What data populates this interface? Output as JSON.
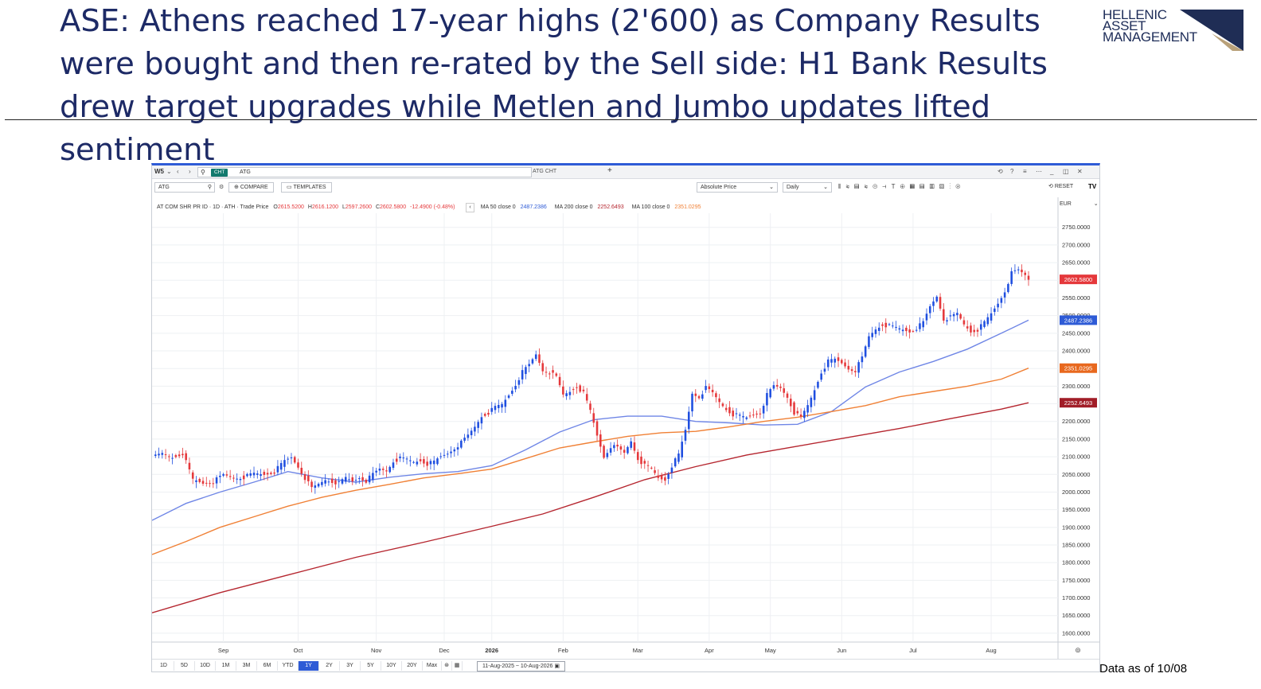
{
  "slide": {
    "title": "ASE: Athens reached 17-year highs (2'600) as Company Results were bought and then re-rated by the Sell side: H1 Bank Results drew target upgrades while Metlen and Jumbo updates lifted sentiment",
    "logo_lines": [
      "HELLENIC",
      "ASSET",
      "MANAGEMENT"
    ],
    "footnote": "Data as of 10/08",
    "colors": {
      "title": "#1d2a66",
      "logo_triangle_dark": "#1f2d55",
      "logo_triangle_gold": "#b9a17a"
    }
  },
  "app": {
    "topbar": {
      "workspace": "W5",
      "tag": "CHT",
      "search_value": "ATG",
      "tab_label": "ATG CHT",
      "add_tab": "+"
    },
    "toolbar": {
      "symbol_value": "ATG",
      "compare_label": "COMPARE",
      "templates_label": "TEMPLATES",
      "price_mode": "Absolute Price",
      "interval": "Daily",
      "reset_label": "RESET",
      "currency": "EUR"
    },
    "infobar": {
      "instrument": "AT COM SHR PR ID · 1D · ATH · Trade Price",
      "o_label": "O",
      "o_value": "2615.5200",
      "h_label": "H",
      "h_value": "2616.1200",
      "l_label": "L",
      "l_value": "2597.2600",
      "c_label": "C",
      "c_value": "2602.5800",
      "change": "-12.4900 (-0.48%)",
      "ma50_label": "MA 50 close 0",
      "ma50_value": "2487.2386",
      "ma200_label": "MA 200 close 0",
      "ma200_value": "2252.6493",
      "ma100_label": "MA 100 close 0",
      "ma100_value": "2351.0295"
    },
    "range_buttons": [
      "1D",
      "5D",
      "10D",
      "1M",
      "3M",
      "6M",
      "YTD",
      "1Y",
      "2Y",
      "3Y",
      "5Y",
      "10Y",
      "20Y",
      "Max"
    ],
    "active_range": "1Y",
    "date_range": "11-Aug-2025 ~ 10-Aug-2026"
  },
  "chart_data": {
    "type": "candlestick",
    "title": "",
    "currency": "EUR",
    "ylim": [
      1575,
      2790
    ],
    "y_ticks": [
      1600,
      1650,
      1700,
      1750,
      1800,
      1850,
      1900,
      1950,
      2000,
      2050,
      2100,
      2150,
      2200,
      2250,
      2300,
      2350,
      2400,
      2450,
      2500,
      2550,
      2600,
      2650,
      2700,
      2750
    ],
    "y_tick_format": "0000",
    "x_labels": [
      "Sep",
      "Oct",
      "Nov",
      "Dec",
      "2026",
      "Feb",
      "Mar",
      "Apr",
      "May",
      "Jun",
      "Jul",
      "Aug"
    ],
    "x_label_days": [
      21,
      43,
      66,
      86,
      100,
      121,
      143,
      164,
      182,
      203,
      224,
      247
    ],
    "days_total": 252,
    "last_price": {
      "value": 2602.58,
      "label": "2602.5800",
      "color": "#e5383b"
    },
    "colors": {
      "up": "#1f4fe0",
      "down": "#e5383b"
    },
    "close_anchors": [
      [
        0,
        2097
      ],
      [
        3,
        2108
      ],
      [
        6,
        2098
      ],
      [
        9,
        2110
      ],
      [
        12,
        2035
      ],
      [
        15,
        2025
      ],
      [
        18,
        2030
      ],
      [
        21,
        2048
      ],
      [
        24,
        2040
      ],
      [
        27,
        2042
      ],
      [
        30,
        2052
      ],
      [
        33,
        2050
      ],
      [
        36,
        2058
      ],
      [
        39,
        2088
      ],
      [
        41,
        2098
      ],
      [
        43,
        2072
      ],
      [
        45,
        2040
      ],
      [
        47,
        2010
      ],
      [
        49,
        2022
      ],
      [
        51,
        2035
      ],
      [
        53,
        2030
      ],
      [
        55,
        2025
      ],
      [
        57,
        2040
      ],
      [
        59,
        2030
      ],
      [
        61,
        2042
      ],
      [
        63,
        2032
      ],
      [
        65,
        2050
      ],
      [
        67,
        2065
      ],
      [
        69,
        2060
      ],
      [
        71,
        2088
      ],
      [
        73,
        2095
      ],
      [
        75,
        2092
      ],
      [
        77,
        2085
      ],
      [
        79,
        2090
      ],
      [
        81,
        2080
      ],
      [
        83,
        2085
      ],
      [
        85,
        2100
      ],
      [
        87,
        2110
      ],
      [
        89,
        2125
      ],
      [
        91,
        2140
      ],
      [
        93,
        2160
      ],
      [
        95,
        2185
      ],
      [
        97,
        2215
      ],
      [
        99,
        2225
      ],
      [
        101,
        2240
      ],
      [
        103,
        2248
      ],
      [
        105,
        2275
      ],
      [
        107,
        2305
      ],
      [
        109,
        2340
      ],
      [
        111,
        2360
      ],
      [
        113,
        2390
      ],
      [
        115,
        2345
      ],
      [
        117,
        2340
      ],
      [
        119,
        2325
      ],
      [
        121,
        2275
      ],
      [
        123,
        2285
      ],
      [
        125,
        2300
      ],
      [
        127,
        2280
      ],
      [
        129,
        2230
      ],
      [
        131,
        2160
      ],
      [
        133,
        2100
      ],
      [
        135,
        2130
      ],
      [
        137,
        2125
      ],
      [
        139,
        2110
      ],
      [
        141,
        2145
      ],
      [
        143,
        2095
      ],
      [
        145,
        2075
      ],
      [
        147,
        2065
      ],
      [
        149,
        2040
      ],
      [
        151,
        2035
      ],
      [
        153,
        2075
      ],
      [
        155,
        2105
      ],
      [
        157,
        2175
      ],
      [
        159,
        2280
      ],
      [
        161,
        2270
      ],
      [
        163,
        2295
      ],
      [
        165,
        2280
      ],
      [
        167,
        2255
      ],
      [
        169,
        2235
      ],
      [
        171,
        2220
      ],
      [
        173,
        2215
      ],
      [
        175,
        2210
      ],
      [
        177,
        2220
      ],
      [
        179,
        2225
      ],
      [
        181,
        2275
      ],
      [
        183,
        2300
      ],
      [
        185,
        2295
      ],
      [
        187,
        2270
      ],
      [
        189,
        2225
      ],
      [
        191,
        2210
      ],
      [
        193,
        2245
      ],
      [
        195,
        2290
      ],
      [
        197,
        2340
      ],
      [
        199,
        2370
      ],
      [
        201,
        2375
      ],
      [
        203,
        2365
      ],
      [
        205,
        2350
      ],
      [
        207,
        2345
      ],
      [
        209,
        2380
      ],
      [
        211,
        2440
      ],
      [
        213,
        2462
      ],
      [
        215,
        2475
      ],
      [
        217,
        2470
      ],
      [
        219,
        2465
      ],
      [
        221,
        2460
      ],
      [
        223,
        2455
      ],
      [
        225,
        2465
      ],
      [
        227,
        2480
      ],
      [
        229,
        2525
      ],
      [
        231,
        2555
      ],
      [
        233,
        2490
      ],
      [
        235,
        2495
      ],
      [
        237,
        2505
      ],
      [
        239,
        2475
      ],
      [
        241,
        2455
      ],
      [
        243,
        2460
      ],
      [
        245,
        2480
      ],
      [
        247,
        2505
      ],
      [
        249,
        2535
      ],
      [
        251,
        2570
      ],
      [
        253,
        2620
      ],
      [
        255,
        2628
      ],
      [
        257,
        2615
      ],
      [
        258,
        2603
      ]
    ],
    "series": [
      {
        "name": "MA 50 close 0",
        "color": "#6f86e6",
        "last_label": "2487.2386",
        "points": [
          [
            0,
            1920
          ],
          [
            10,
            1968
          ],
          [
            20,
            2000
          ],
          [
            30,
            2028
          ],
          [
            40,
            2058
          ],
          [
            50,
            2040
          ],
          [
            60,
            2028
          ],
          [
            70,
            2042
          ],
          [
            80,
            2052
          ],
          [
            90,
            2058
          ],
          [
            100,
            2075
          ],
          [
            110,
            2120
          ],
          [
            120,
            2170
          ],
          [
            130,
            2205
          ],
          [
            140,
            2215
          ],
          [
            150,
            2215
          ],
          [
            160,
            2200
          ],
          [
            170,
            2196
          ],
          [
            180,
            2190
          ],
          [
            190,
            2192
          ],
          [
            200,
            2228
          ],
          [
            210,
            2298
          ],
          [
            220,
            2340
          ],
          [
            230,
            2370
          ],
          [
            240,
            2405
          ],
          [
            250,
            2450
          ],
          [
            258,
            2487
          ]
        ]
      },
      {
        "name": "MA 100 close 0",
        "color": "#f08035",
        "last_label": "2351.0295",
        "points": [
          [
            0,
            1823
          ],
          [
            10,
            1860
          ],
          [
            20,
            1900
          ],
          [
            30,
            1930
          ],
          [
            40,
            1960
          ],
          [
            50,
            1985
          ],
          [
            60,
            2005
          ],
          [
            70,
            2022
          ],
          [
            80,
            2040
          ],
          [
            90,
            2052
          ],
          [
            100,
            2065
          ],
          [
            110,
            2095
          ],
          [
            120,
            2125
          ],
          [
            130,
            2142
          ],
          [
            140,
            2158
          ],
          [
            150,
            2168
          ],
          [
            160,
            2172
          ],
          [
            170,
            2185
          ],
          [
            180,
            2200
          ],
          [
            190,
            2212
          ],
          [
            200,
            2228
          ],
          [
            210,
            2245
          ],
          [
            220,
            2270
          ],
          [
            230,
            2285
          ],
          [
            240,
            2300
          ],
          [
            250,
            2320
          ],
          [
            258,
            2351
          ]
        ]
      },
      {
        "name": "MA 200 close 0",
        "color": "#b5262f",
        "last_label": "2252.6493",
        "points": [
          [
            0,
            1658
          ],
          [
            20,
            1715
          ],
          [
            40,
            1765
          ],
          [
            60,
            1815
          ],
          [
            80,
            1858
          ],
          [
            100,
            1903
          ],
          [
            115,
            1938
          ],
          [
            130,
            1985
          ],
          [
            145,
            2035
          ],
          [
            160,
            2072
          ],
          [
            175,
            2105
          ],
          [
            190,
            2130
          ],
          [
            205,
            2155
          ],
          [
            220,
            2180
          ],
          [
            235,
            2208
          ],
          [
            250,
            2235
          ],
          [
            258,
            2253
          ]
        ]
      }
    ]
  }
}
